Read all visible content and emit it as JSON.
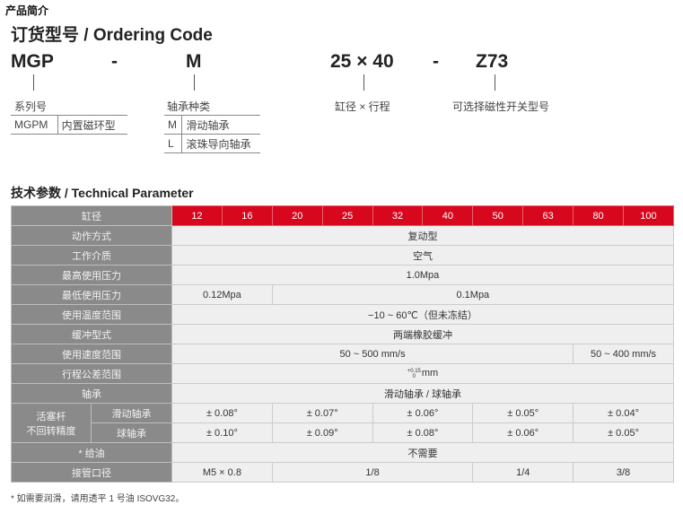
{
  "intro_label": "产品简介",
  "ordering": {
    "title": "订货型号 / Ordering Code",
    "codes": [
      "MGP",
      "-",
      "M",
      "25 × 40",
      "-",
      "Z73"
    ],
    "series": {
      "label": "系列号",
      "rows": [
        {
          "code": "MGPM",
          "desc": "内置磁环型"
        }
      ]
    },
    "bearing": {
      "label": "轴承种类",
      "rows": [
        {
          "code": "M",
          "desc": "滑动轴承"
        },
        {
          "code": "L",
          "desc": "滚珠导向轴承"
        }
      ]
    },
    "bore_stroke_label": "缸径 × 行程",
    "switch_label": "可选择磁性开关型号"
  },
  "spec": {
    "title": "技术参数 / Technical Parameter",
    "colors": {
      "header": "#d7081d",
      "label_bg": "#8a8a8a",
      "cell_bg": "#efefef"
    },
    "header": {
      "label": "缸径",
      "bores": [
        "12",
        "16",
        "20",
        "25",
        "32",
        "40",
        "50",
        "63",
        "80",
        "100"
      ]
    },
    "rows": [
      {
        "label": "动作方式",
        "cells": [
          {
            "text": "复动型",
            "span": 10
          }
        ]
      },
      {
        "label": "工作介质",
        "cells": [
          {
            "text": "空气",
            "span": 10
          }
        ]
      },
      {
        "label": "最高使用压力",
        "cells": [
          {
            "text": "1.0Mpa",
            "span": 10
          }
        ]
      },
      {
        "label": "最低使用压力",
        "cells": [
          {
            "text": "0.12Mpa",
            "span": 2
          },
          {
            "text": "0.1Mpa",
            "span": 8
          }
        ]
      },
      {
        "label": "使用温度范围",
        "cells": [
          {
            "text": "−10 ~ 60℃（但未冻结）",
            "span": 10
          }
        ]
      },
      {
        "label": "缓冲型式",
        "cells": [
          {
            "text": "两端橡胶缓冲",
            "span": 10
          }
        ]
      },
      {
        "label": "使用速度范围",
        "cells": [
          {
            "text": "50 ~ 500 mm/s",
            "span": 8
          },
          {
            "text": "50 ~ 400 mm/s",
            "span": 2
          }
        ]
      },
      {
        "label": "行程公差范围",
        "tolerance": {
          "upper": "+0.15",
          "lower": "0",
          "unit": "mm"
        }
      },
      {
        "label": "轴承",
        "cells": [
          {
            "text": "滑动轴承 / 球轴承",
            "span": 10
          }
        ]
      },
      {
        "group": "活塞杆\n不回转精度",
        "label": "滑动轴承",
        "cells": [
          {
            "text": "± 0.08°",
            "span": 2
          },
          {
            "text": "± 0.07°",
            "span": 2
          },
          {
            "text": "± 0.06°",
            "span": 2
          },
          {
            "text": "± 0.05°",
            "span": 2
          },
          {
            "text": "± 0.04°",
            "span": 2
          }
        ]
      },
      {
        "label": "球轴承",
        "cells": [
          {
            "text": "± 0.10°",
            "span": 2
          },
          {
            "text": "± 0.09°",
            "span": 2
          },
          {
            "text": "± 0.08°",
            "span": 2
          },
          {
            "text": "± 0.06°",
            "span": 2
          },
          {
            "text": "± 0.05°",
            "span": 2
          }
        ]
      },
      {
        "label": "* 给油",
        "cells": [
          {
            "text": "不需要",
            "span": 10
          }
        ]
      },
      {
        "label": "接管口径",
        "cells": [
          {
            "text": "M5 × 0.8",
            "span": 2
          },
          {
            "text": "1/8",
            "span": 4
          },
          {
            "text": "1/4",
            "span": 2
          },
          {
            "text": "3/8",
            "span": 2
          }
        ]
      }
    ],
    "note": "* 如需要润滑，请用透平 1 号油 ISOVG32。"
  }
}
